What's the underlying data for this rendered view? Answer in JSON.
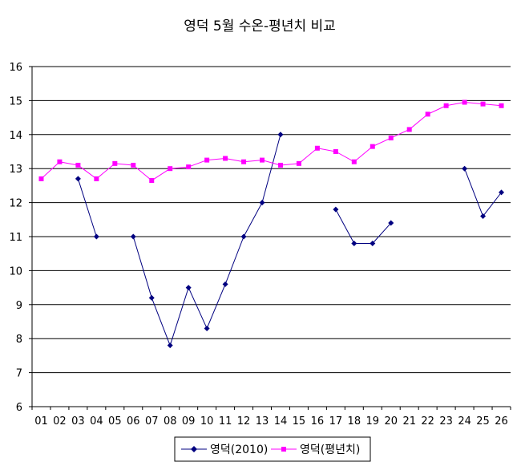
{
  "chart_data": {
    "type": "line",
    "title": "영덕 5월 수온-평년치 비교",
    "xlabel": "",
    "ylabel": "",
    "categories": [
      "01",
      "02",
      "03",
      "04",
      "05",
      "06",
      "07",
      "08",
      "09",
      "10",
      "11",
      "12",
      "13",
      "14",
      "15",
      "16",
      "17",
      "18",
      "19",
      "20",
      "21",
      "22",
      "23",
      "24",
      "25",
      "26"
    ],
    "ylim": [
      6,
      16
    ],
    "yticks": [
      "6",
      "7",
      "8",
      "9",
      "10",
      "11",
      "12",
      "13",
      "14",
      "15",
      "16"
    ],
    "grid": true,
    "legend": "bottom",
    "series": [
      {
        "name": "영덕(2010)",
        "color": "#000080",
        "marker": "diamond",
        "values": [
          null,
          null,
          12.7,
          11.0,
          null,
          11.0,
          9.2,
          7.8,
          9.5,
          8.3,
          9.6,
          11.0,
          12.0,
          14.0,
          null,
          null,
          11.8,
          10.8,
          10.8,
          11.4,
          null,
          null,
          null,
          13.0,
          11.6,
          12.3
        ]
      },
      {
        "name": "영덕(평년치)",
        "color": "#ff00ff",
        "marker": "square",
        "values": [
          12.7,
          13.2,
          13.1,
          12.7,
          13.15,
          13.1,
          12.65,
          13.0,
          13.05,
          13.25,
          13.3,
          13.2,
          13.25,
          13.1,
          13.15,
          13.6,
          13.5,
          13.2,
          13.65,
          13.9,
          14.15,
          14.6,
          14.85,
          14.95,
          14.9,
          14.85
        ]
      }
    ]
  }
}
